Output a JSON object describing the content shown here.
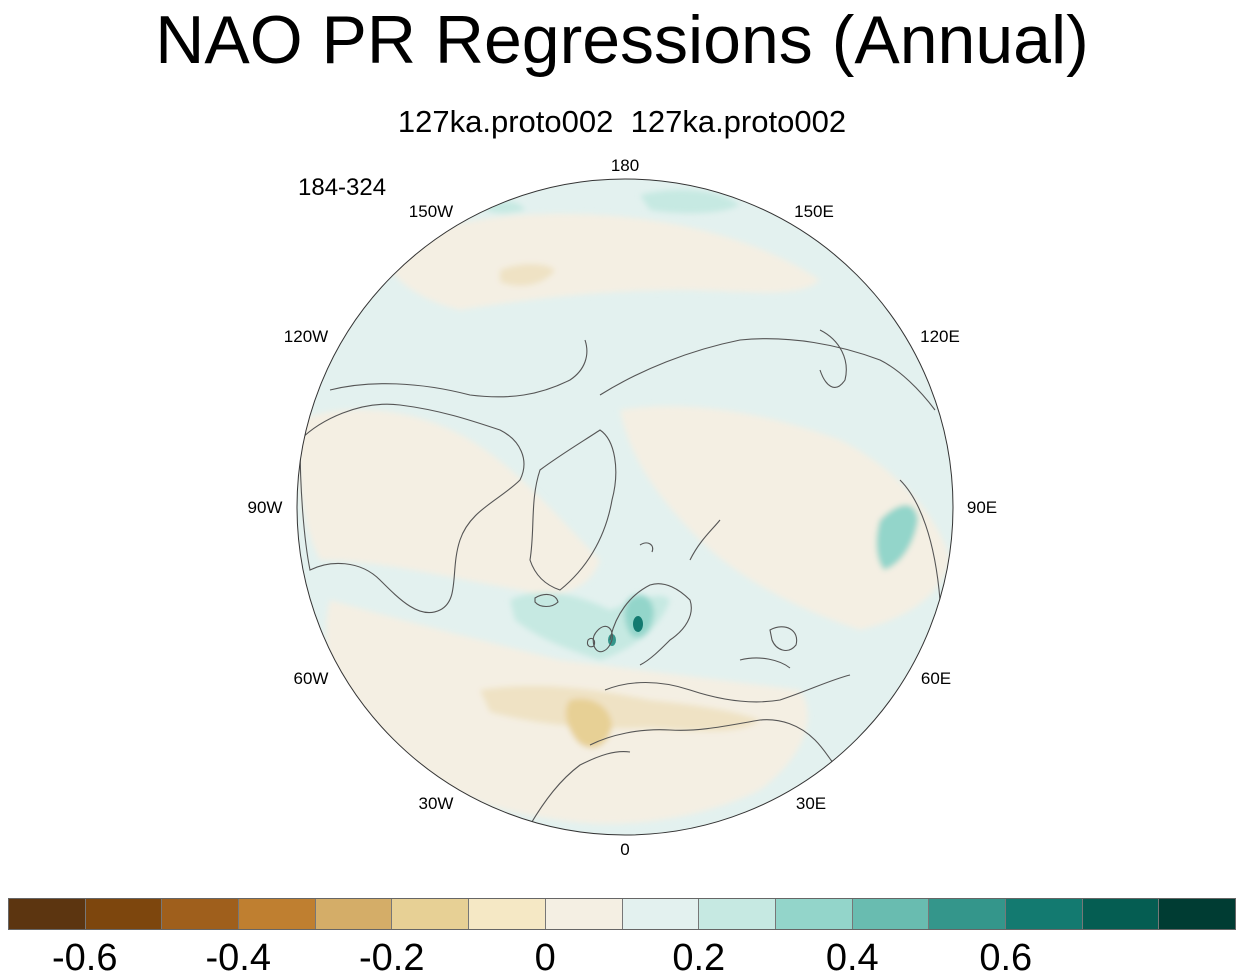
{
  "title": "NAO PR Regressions (Annual)",
  "subtitle": "127ka.proto002  127ka.proto002",
  "period": "184-324",
  "lon_labels": {
    "lon_180": "180",
    "lon_150e": "150E",
    "lon_120e": "120E",
    "lon_90e": "90E",
    "lon_60e": "60E",
    "lon_30e": "30E",
    "lon_0": "0",
    "lon_30w": "30W",
    "lon_60w": "60W",
    "lon_90w": "90W",
    "lon_120w": "120W",
    "lon_150w": "150W"
  },
  "colorbar": {
    "colors": [
      "#5c3510",
      "#7d460d",
      "#9f5f1c",
      "#bf7f30",
      "#d4ad68",
      "#e7d095",
      "#f5e8c5",
      "#f4efe3",
      "#e3f1ef",
      "#c6e9e2",
      "#93d5ca",
      "#69bcb0",
      "#34968b",
      "#137a70",
      "#055d52",
      "#003c33"
    ],
    "labels": [
      "-0.6",
      "-0.4",
      "-0.2",
      "0",
      "0.2",
      "0.4",
      "0.6"
    ],
    "levels": [
      -0.7,
      -0.6,
      -0.5,
      -0.4,
      -0.3,
      -0.2,
      -0.1,
      0,
      0.1,
      0.2,
      0.3,
      0.4,
      0.5,
      0.6,
      0.7
    ]
  },
  "map": {
    "projection": "polar stereographic (north pole)",
    "background_color": "#e3f1ef",
    "coastline_color": "#555555"
  }
}
